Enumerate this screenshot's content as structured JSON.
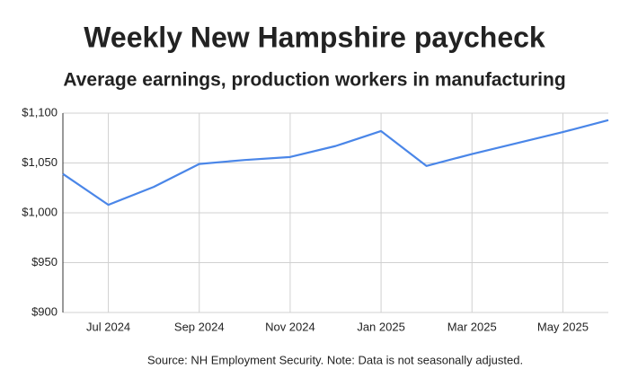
{
  "chart_data": {
    "type": "line",
    "title": "Weekly New Hampshire paycheck",
    "subtitle": "Average earnings, production workers in manufacturing",
    "source": "Source: NH Employment Security. Note: Data is not seasonally adjusted.",
    "categories": [
      null,
      "Jul 2024",
      null,
      "Sep 2024",
      null,
      "Nov 2024",
      null,
      "Jan 2025",
      null,
      "Mar 2025",
      null,
      "May 2025",
      null
    ],
    "values": [
      1039,
      1008,
      1026,
      1049,
      1053,
      1056,
      1067,
      1082,
      1047,
      1059,
      1070,
      1081,
      1093
    ],
    "color": "#4a86e8",
    "ylim": [
      900,
      1100
    ],
    "yticks": [
      {
        "value": 900,
        "label": "$900"
      },
      {
        "value": 950,
        "label": "$950"
      },
      {
        "value": 1000,
        "label": "$1,000"
      },
      {
        "value": 1050,
        "label": "$1,050"
      },
      {
        "value": 1100,
        "label": "$1,100"
      }
    ],
    "grid": true
  }
}
